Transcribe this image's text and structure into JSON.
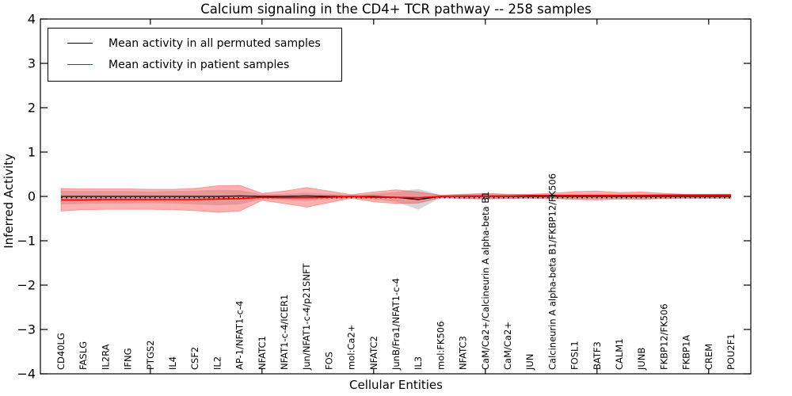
{
  "title": "Calcium signaling in the CD4+ TCR pathway -- 258 samples",
  "axes": {
    "xlabel": "Cellular Entities",
    "ylabel": "Inferred Activity",
    "ytick_labels": [
      "4",
      "3",
      "2",
      "1",
      "0",
      "−1",
      "−2",
      "−3",
      "−4"
    ],
    "ytick_values": [
      4,
      3,
      2,
      1,
      0,
      -1,
      -2,
      -3,
      -4
    ],
    "xtick_entity_indices": [
      4,
      9,
      14,
      19,
      24,
      29
    ]
  },
  "legend": {
    "items": [
      {
        "label": "Mean activity in all permuted samples",
        "color": "#000000"
      },
      {
        "label": "Mean activity in patient samples",
        "color": "#ff0000"
      }
    ]
  },
  "chart_data": {
    "type": "line",
    "title": "Calcium signaling in the CD4+ TCR pathway -- 258 samples",
    "xlabel": "Cellular Entities",
    "ylabel": "Inferred Activity",
    "ylim": [
      -4,
      4
    ],
    "grid": false,
    "legend_position": "upper left",
    "n_samples_in_title": 258,
    "categories": [
      "CD40LG",
      "FASLG",
      "IL2RA",
      "IFNG",
      "PTGS2",
      "IL4",
      "CSF2",
      "IL2",
      "AP-1/NFAT1-c-4",
      "NFATC1",
      "NFAT1-c-4/ICER1",
      "Jun/NFAT1-c-4/p21SNFT",
      "FOS",
      "mol:Ca2+",
      "NFATC2",
      "JunB/Fra1/NFAT1-c-4",
      "IL3",
      "mol:FK506",
      "NFATC3",
      "CaM/Ca2+/Calcineurin A alpha-beta B1",
      "CaM/Ca2+",
      "JUN",
      "Calcineurin A alpha-beta B1/FKBP12/FK506",
      "FOSL1",
      "BATF3",
      "CALM1",
      "JUNB",
      "FKBP12/FK506",
      "FKBP1A",
      "CREM",
      "POU2F1"
    ],
    "series": [
      {
        "name": "Mean activity in all permuted samples",
        "kind": "line",
        "style": "solid",
        "color": "#000000",
        "values": [
          0.0,
          0.0,
          0.0,
          0.0,
          0.0,
          0.0,
          0.0,
          0.0,
          0.01,
          0.0,
          0.0,
          0.01,
          0.0,
          0.0,
          0.0,
          -0.02,
          -0.07,
          0.0,
          0.0,
          0.0,
          0.0,
          0.0,
          0.0,
          0.0,
          0.0,
          0.0,
          0.0,
          0.0,
          0.0,
          0.0,
          0.0
        ]
      },
      {
        "name": "Permuted samples std band",
        "kind": "band",
        "color": "#808080",
        "upper": [
          0.13,
          0.12,
          0.12,
          0.12,
          0.11,
          0.12,
          0.13,
          0.15,
          0.14,
          0.05,
          0.06,
          0.08,
          0.06,
          0.03,
          0.06,
          0.1,
          0.17,
          0.03,
          0.05,
          0.06,
          0.05,
          0.05,
          0.05,
          0.06,
          0.06,
          0.06,
          0.06,
          0.05,
          0.05,
          0.05,
          0.06
        ],
        "lower": [
          -0.18,
          -0.17,
          -0.16,
          -0.16,
          -0.15,
          -0.16,
          -0.18,
          -0.2,
          -0.18,
          -0.06,
          -0.08,
          -0.1,
          -0.07,
          -0.03,
          -0.07,
          -0.12,
          -0.3,
          -0.03,
          -0.05,
          -0.06,
          -0.05,
          -0.05,
          -0.05,
          -0.06,
          -0.06,
          -0.06,
          -0.06,
          -0.05,
          -0.05,
          -0.05,
          -0.06
        ]
      },
      {
        "name": "Mean activity in patient samples",
        "kind": "line",
        "style": "solid",
        "color": "#ff0000",
        "values": [
          -0.08,
          -0.08,
          -0.07,
          -0.07,
          -0.07,
          -0.07,
          -0.07,
          -0.06,
          -0.05,
          -0.02,
          -0.03,
          -0.03,
          -0.02,
          0.0,
          -0.02,
          -0.02,
          -0.03,
          0.0,
          0.01,
          0.01,
          0.01,
          0.02,
          0.02,
          0.02,
          0.02,
          0.02,
          0.02,
          0.03,
          0.03,
          0.03,
          0.03
        ]
      },
      {
        "name": "Patient samples std band",
        "kind": "band",
        "color": "#ff3c3c",
        "upper": [
          0.18,
          0.17,
          0.17,
          0.17,
          0.16,
          0.16,
          0.18,
          0.24,
          0.25,
          0.07,
          0.12,
          0.2,
          0.12,
          0.04,
          0.1,
          0.15,
          0.1,
          0.03,
          0.05,
          0.07,
          0.05,
          0.05,
          0.07,
          0.11,
          0.12,
          0.09,
          0.1,
          0.07,
          0.05,
          0.05,
          0.05
        ],
        "lower": [
          -0.33,
          -0.3,
          -0.29,
          -0.29,
          -0.29,
          -0.3,
          -0.32,
          -0.36,
          -0.33,
          -0.09,
          -0.16,
          -0.24,
          -0.14,
          -0.04,
          -0.12,
          -0.16,
          -0.15,
          -0.03,
          -0.05,
          -0.06,
          -0.05,
          -0.04,
          -0.05,
          -0.07,
          -0.08,
          -0.06,
          -0.07,
          -0.05,
          -0.04,
          -0.04,
          -0.04
        ]
      },
      {
        "name": "Zero reference line",
        "kind": "line",
        "style": "dotted",
        "color": "#000000",
        "value": -0.03
      }
    ]
  }
}
